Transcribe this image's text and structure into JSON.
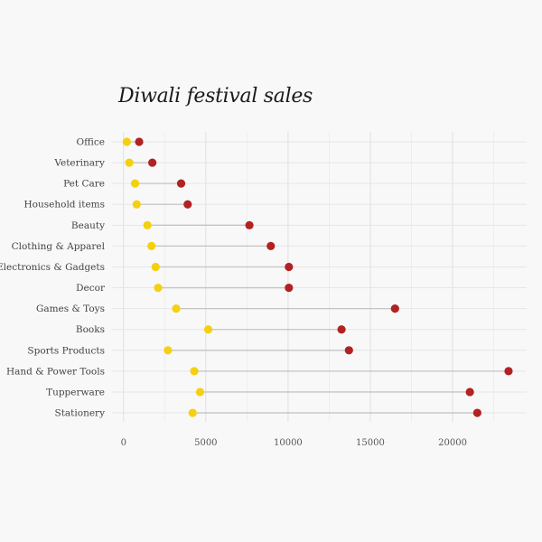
{
  "chart_data": {
    "type": "dumbbell",
    "title": "Diwali festival sales",
    "categories": [
      "Office",
      "Veterinary",
      "Pet Care",
      "Household items",
      "Beauty",
      "Clothing & Apparel",
      "Electronics & Gadgets",
      "Decor",
      "Games & Toys",
      "Books",
      "Sports Products",
      "Hand & Power Tools",
      "Tupperware",
      "Stationery"
    ],
    "series": [
      {
        "color": "#f5d00f",
        "values": [
          200,
          350,
          700,
          800,
          1450,
          1700,
          1950,
          2100,
          3200,
          5150,
          2700,
          4300,
          4650,
          4200
        ]
      },
      {
        "color": "#b22222",
        "values": [
          950,
          1750,
          3500,
          3900,
          7650,
          8950,
          10050,
          10050,
          16500,
          13250,
          13700,
          23400,
          21050,
          21500
        ]
      }
    ],
    "xticks": [
      0,
      5000,
      10000,
      15000,
      20000
    ],
    "xlim": [
      -700,
      24500
    ],
    "grid": true,
    "legend": "none"
  }
}
